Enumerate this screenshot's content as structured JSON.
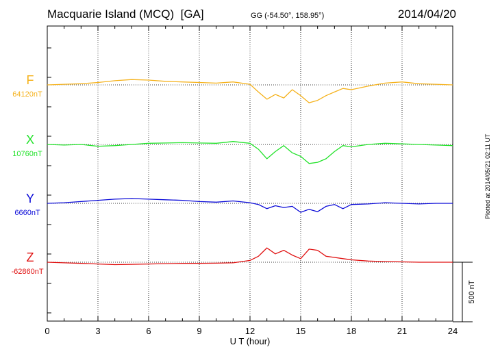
{
  "header": {
    "station": "Macquarie Island (MCQ)  [GA]",
    "coords": "GG (-54.50°, 158.95°)",
    "date": "2014/04/20"
  },
  "footer": {
    "plotted": "Plotted at 2014/05/21 02:11 UT"
  },
  "chart_data": {
    "type": "line",
    "xlabel": "U T (hour)",
    "xlim": [
      0,
      24
    ],
    "x_ticks": [
      "0",
      "3",
      "6",
      "9",
      "12",
      "15",
      "18",
      "21",
      "24"
    ],
    "scale_bar_label": "500 nT",
    "scale_bar_nT": 500,
    "grid": true,
    "series": [
      {
        "name": "F",
        "baseline_label": "64120nT",
        "color": "#f5b21c",
        "x": [
          0,
          1,
          2,
          3,
          4,
          5,
          6,
          7,
          8,
          9,
          10,
          11,
          12,
          12.5,
          13,
          13.5,
          14,
          14.5,
          15,
          15.5,
          16,
          16.5,
          17,
          17.5,
          18,
          19,
          20,
          21,
          22,
          23,
          24
        ],
        "values": [
          0,
          5,
          10,
          20,
          35,
          45,
          40,
          30,
          25,
          20,
          15,
          25,
          5,
          -60,
          -120,
          -80,
          -110,
          -40,
          -90,
          -150,
          -130,
          -90,
          -60,
          -30,
          -40,
          -10,
          15,
          25,
          10,
          5,
          0
        ]
      },
      {
        "name": "X",
        "baseline_label": "10760nT",
        "color": "#22e22a",
        "x": [
          0,
          1,
          2,
          3,
          4,
          5,
          6,
          7,
          8,
          9,
          10,
          11,
          12,
          12.5,
          13,
          13.5,
          14,
          14.5,
          15,
          15.5,
          16,
          16.5,
          17,
          17.5,
          18,
          19,
          20,
          21,
          22,
          23,
          24
        ],
        "values": [
          0,
          -5,
          0,
          -15,
          -10,
          0,
          10,
          12,
          15,
          12,
          10,
          25,
          10,
          -40,
          -120,
          -60,
          -10,
          -70,
          -100,
          -160,
          -150,
          -120,
          -60,
          -10,
          -20,
          0,
          10,
          5,
          0,
          -5,
          -10
        ]
      },
      {
        "name": "Y",
        "baseline_label": "6660nT",
        "color": "#0a0ad8",
        "x": [
          0,
          1,
          2,
          3,
          4,
          5,
          6,
          7,
          8,
          9,
          10,
          11,
          12,
          12.5,
          13,
          13.5,
          14,
          14.5,
          15,
          15.5,
          16,
          16.5,
          17,
          17.5,
          18,
          19,
          20,
          21,
          22,
          23,
          24
        ],
        "values": [
          0,
          5,
          15,
          25,
          35,
          40,
          35,
          30,
          25,
          15,
          10,
          20,
          5,
          -10,
          -45,
          -20,
          -35,
          -25,
          -75,
          -50,
          -70,
          -25,
          -10,
          -45,
          -10,
          -5,
          5,
          0,
          -5,
          0,
          0
        ]
      },
      {
        "name": "Z",
        "baseline_label": "-62860nT",
        "color": "#e01010",
        "x": [
          0,
          1,
          2,
          3,
          4,
          5,
          6,
          7,
          8,
          9,
          10,
          11,
          12,
          12.5,
          13,
          13.5,
          14,
          14.5,
          15,
          15.5,
          16,
          16.5,
          17,
          17.5,
          18,
          19,
          20,
          21,
          22,
          23,
          24
        ],
        "values": [
          0,
          -5,
          -10,
          -15,
          -20,
          -18,
          -15,
          -12,
          -10,
          -10,
          -8,
          -5,
          15,
          50,
          120,
          70,
          100,
          60,
          30,
          110,
          100,
          50,
          40,
          30,
          20,
          10,
          5,
          3,
          0,
          0,
          0
        ]
      }
    ]
  }
}
